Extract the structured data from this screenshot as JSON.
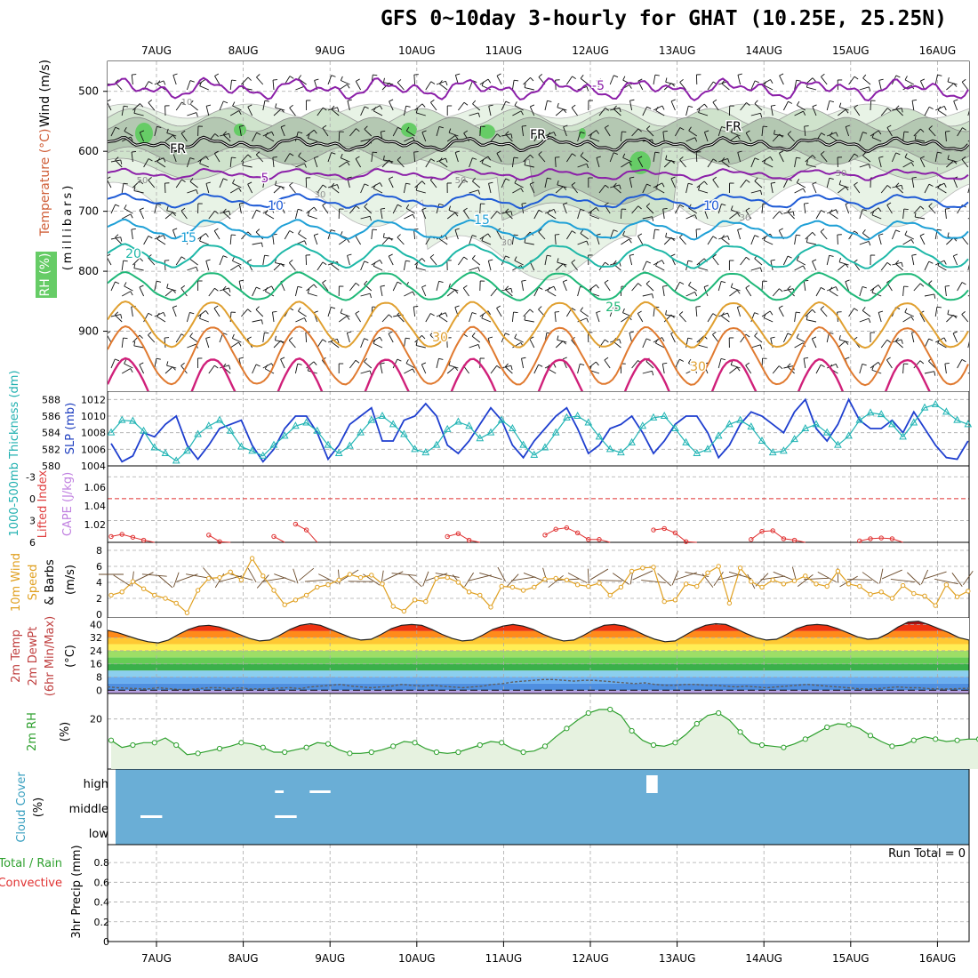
{
  "title": "GFS 0~10day 3-hourly for GHAT (10.25E, 25.25N)",
  "days": [
    "7AUG",
    "8AUG",
    "9AUG",
    "10AUG",
    "11AUG",
    "12AUG",
    "13AUG",
    "14AUG",
    "15AUG",
    "16AUG"
  ],
  "chart_data": [
    {
      "type": "line",
      "panel": "upper-air",
      "ylabels": [
        {
          "text": "Wind (m/s)",
          "color": "#000000"
        },
        {
          "text": "Temperature (°C)",
          "color": "#d0603a"
        },
        {
          "text": "RH (%)",
          "color": "#2e9e2e"
        }
      ],
      "axis_label": "(millibars)",
      "y_ticks": [
        500,
        600,
        700,
        800,
        900
      ],
      "ylim": [
        1000,
        450
      ],
      "isotherm_labels": [
        {
          "text": "-5",
          "color": "#8b1fa8"
        },
        {
          "text": "5",
          "color": "#8b1fa8"
        },
        {
          "text": "10",
          "color": "#1f5bd6"
        },
        {
          "text": "15",
          "color": "#1fa0d6"
        },
        {
          "text": "20",
          "color": "#1fb8a8"
        },
        {
          "text": "25",
          "color": "#1fb878"
        },
        {
          "text": "30",
          "color": "#e0a030"
        },
        {
          "text": "FR",
          "color": "#000000"
        }
      ],
      "rh_labels": [
        "10",
        "30",
        "50"
      ]
    },
    {
      "type": "line",
      "panel": "slp-thickness",
      "ylabels": [
        {
          "text": "1000-500mb Thickness (dm)",
          "color": "#20b0b0"
        },
        {
          "text": "SLP (mb)",
          "color": "#2040c0"
        }
      ],
      "slp_ticks": [
        "1012",
        "1010",
        "1008",
        "1006",
        "1004"
      ],
      "thickness_ticks": [
        "588",
        "586",
        "584",
        "582",
        "580"
      ],
      "series": [
        {
          "name": "SLP (mb)",
          "color": "#1f3fcf",
          "values": [
            1006.7,
            1004.5,
            1005.2,
            1008.0,
            1007.5,
            1009.0,
            1010.0,
            1006.5,
            1004.8,
            1006.5,
            1008.5,
            1009.0,
            1009.5,
            1006.5,
            1004.5,
            1006.0,
            1008.5,
            1010.0,
            1010.0,
            1008.0,
            1004.8,
            1006.5,
            1009.0,
            1010.0,
            1011.0,
            1007.0,
            1007.0,
            1009.5,
            1010.0,
            1011.5,
            1010.0,
            1006.5,
            1005.5,
            1007.0,
            1009.0,
            1011.0,
            1009.5,
            1006.5,
            1005.0,
            1007.0,
            1008.5,
            1010.0,
            1011.0,
            1008.5,
            1005.5,
            1006.5,
            1008.5,
            1009.0,
            1010.0,
            1008.0,
            1005.5,
            1007.0,
            1009.0,
            1010.0,
            1010.0,
            1008.0,
            1005.0,
            1006.5,
            1009.0,
            1010.5,
            1010.0,
            1009.0,
            1008.0,
            1010.5,
            1012.0,
            1008.5,
            1007.0,
            1009.0,
            1012.0,
            1009.5,
            1008.5,
            1008.5,
            1009.5,
            1008.0,
            1010.5,
            1008.5,
            1006.5,
            1005.0,
            1004.8,
            1007.0
          ]
        },
        {
          "name": "1000-500mb Thickness (dm)",
          "color": "#20b4b4",
          "values": [
            584.0,
            585.5,
            585.4,
            584.2,
            582.2,
            581.5,
            580.6,
            581.8,
            583.8,
            584.8,
            585.5,
            584.2,
            582.3,
            581.8,
            581.2,
            582.5,
            583.6,
            584.8,
            585.2,
            584.2,
            582.5,
            581.5,
            582.4,
            584.0,
            585.5,
            586.0,
            585.0,
            583.8,
            582.0,
            581.6,
            582.5,
            584.4,
            585.3,
            584.8,
            583.3,
            584.0,
            585.5,
            584.5,
            582.5,
            581.3,
            582.2,
            584.0,
            585.8,
            586.0,
            585.2,
            583.5,
            582.0,
            581.6,
            582.8,
            584.8,
            585.8,
            586.0,
            584.5,
            582.8,
            581.5,
            582.0,
            583.6,
            585.0,
            585.5,
            584.7,
            583.0,
            581.6,
            581.8,
            583.2,
            584.5,
            585.0,
            584.0,
            582.5,
            583.6,
            585.5,
            586.4,
            586.2,
            585.0,
            583.5,
            585.2,
            587.0,
            587.4,
            586.5,
            585.5,
            585.0
          ]
        }
      ]
    },
    {
      "type": "line",
      "panel": "lifted-index-cape",
      "ylabels": [
        {
          "text": "Lifted Index",
          "color": "#e04040"
        },
        {
          "text": "CAPE (J/kg)",
          "color": "#c080e0"
        }
      ],
      "li_ticks": [
        "-3",
        "0",
        "3",
        "6"
      ],
      "cape_ticks": [
        "1.06",
        "1.04",
        "1.02"
      ],
      "dashed_zero_line": true,
      "series": [
        {
          "name": "Lifted Index",
          "color": "#e03030",
          "values": [
            5.2,
            4.9,
            5.3,
            5.7,
            6.0,
            6.3,
            6.6,
            6.8,
            6.2,
            5.0,
            5.9,
            6.3,
            6.6,
            6.7,
            6.9,
            5.2,
            6.7,
            3.5,
            4.3,
            6.4,
            6.7,
            6.7,
            6.7,
            6.6,
            6.1,
            6.1,
            6.7,
            6.8,
            6.8,
            6.8,
            6.8,
            5.2,
            4.8,
            5.7,
            6.8,
            6.8,
            6.8,
            6.8,
            6.8,
            6.1,
            5.0,
            4.2,
            4.0,
            4.7,
            5.6,
            5.6,
            6.0,
            6.6,
            6.6,
            6.3,
            4.3,
            4.1,
            4.7,
            5.9,
            6.7,
            6.7,
            6.8,
            6.8,
            6.6,
            5.6,
            4.5,
            4.4,
            5.5,
            5.7,
            6.8,
            6.8,
            6.8,
            6.8,
            6.8,
            5.8,
            5.5,
            5.4,
            5.5,
            6.5,
            6.8,
            6.8,
            6.8,
            6.8,
            6.8,
            6.1
          ]
        }
      ]
    },
    {
      "type": "line",
      "panel": "10m-wind",
      "ylabels": [
        {
          "text": "10m Wind Speed & Barbs",
          "color": "#e0a020"
        }
      ],
      "axis_label": "(m/s)",
      "y_ticks": [
        0,
        2,
        4,
        6,
        8
      ],
      "ylim": [
        0,
        8
      ],
      "series": [
        {
          "name": "10m Wind Speed",
          "color": "#e0a020",
          "values": [
            2.4,
            2.8,
            4.1,
            3.2,
            2.4,
            2.0,
            1.4,
            0.2,
            3.0,
            4.5,
            4.6,
            5.3,
            4.3,
            7.0,
            4.8,
            3.0,
            1.2,
            1.8,
            2.4,
            3.4,
            3.7,
            4.3,
            5.0,
            4.6,
            4.9,
            3.8,
            1.0,
            0.4,
            1.8,
            1.6,
            4.5,
            4.6,
            4.0,
            2.8,
            2.4,
            0.9,
            3.5,
            3.4,
            3.0,
            3.4,
            4.4,
            4.5,
            4.3,
            3.7,
            3.5,
            3.9,
            2.4,
            3.4,
            5.4,
            5.8,
            5.9,
            1.6,
            1.8,
            3.8,
            3.5,
            5.2,
            6.0,
            1.4,
            5.8,
            4.1,
            3.4,
            4.3,
            3.8,
            4.2,
            4.8,
            3.8,
            3.5,
            5.4,
            3.8,
            3.5,
            2.5,
            2.8,
            2.0,
            3.6,
            2.6,
            2.3,
            1.1,
            3.7,
            2.2,
            2.9
          ]
        }
      ]
    },
    {
      "type": "area",
      "panel": "2m-temp",
      "ylabels": [
        {
          "text": "2m Temp 2m DewPt (6hr Min/Max)",
          "color": "#c04040"
        }
      ],
      "axis_label": "(°C)",
      "y_ticks": [
        0,
        8,
        16,
        24,
        32,
        40
      ],
      "ylim": [
        -2,
        44
      ],
      "series": [
        {
          "name": "2m Temp",
          "color": "#202020",
          "values": [
            36.5,
            35.0,
            33.0,
            31.0,
            29.5,
            28.8,
            30.5,
            34.0,
            37.0,
            39.0,
            39.5,
            38.5,
            36.5,
            34.0,
            31.5,
            30.0,
            30.5,
            33.5,
            37.0,
            39.5,
            40.5,
            39.5,
            37.0,
            34.5,
            32.0,
            30.5,
            31.0,
            34.0,
            37.5,
            39.5,
            40.0,
            39.5,
            37.0,
            34.0,
            31.5,
            30.0,
            30.5,
            33.5,
            37.0,
            39.0,
            40.0,
            39.0,
            37.0,
            34.0,
            31.5,
            30.0,
            30.5,
            33.5,
            37.0,
            39.5,
            40.0,
            39.0,
            36.5,
            33.5,
            31.0,
            29.5,
            30.0,
            33.5,
            37.0,
            39.5,
            40.5,
            40.0,
            37.5,
            34.5,
            32.0,
            30.5,
            31.0,
            34.0,
            37.5,
            39.5,
            40.0,
            39.5,
            37.5,
            35.0,
            32.5,
            31.0,
            31.5,
            34.5,
            38.5,
            41.5,
            42.0,
            40.0,
            37.5,
            35.0,
            32.0,
            30.5
          ]
        },
        {
          "name": "2m DewPt",
          "color": "#606060",
          "values": [
            2.0,
            1.5,
            1.2,
            1.0,
            0.8,
            1.5,
            1.0,
            0.5,
            0.5,
            1.0,
            1.5,
            1.5,
            1.0,
            1.5,
            0.8,
            0.8,
            1.0,
            1.3,
            1.5,
            1.0,
            2.0,
            2.5,
            3.0,
            3.5,
            2.5,
            2.0,
            1.5,
            2.0,
            2.5,
            3.5,
            3.0,
            2.5,
            3.0,
            2.5,
            2.0,
            1.5,
            2.0,
            2.5,
            3.5,
            4.0,
            5.0,
            5.5,
            6.0,
            6.5,
            6.5,
            6.0,
            5.5,
            6.0,
            6.0,
            5.5,
            5.0,
            4.5,
            4.0,
            4.5,
            3.5,
            3.0,
            3.0,
            3.5,
            3.5,
            3.0,
            3.0,
            2.5,
            2.0,
            2.5,
            2.0,
            1.5,
            2.0,
            2.5,
            3.0,
            3.5,
            3.0,
            2.5,
            2.0,
            1.5,
            1.0,
            0.8,
            1.0,
            1.5,
            2.0,
            1.5,
            1.5,
            1.0,
            0.8,
            0.8,
            1.0,
            1.2
          ]
        }
      ]
    },
    {
      "type": "area",
      "panel": "2m-rh",
      "ylabels": [
        {
          "text": "2m RH",
          "color": "#2ea02e"
        }
      ],
      "axis_label": "(%)",
      "y_ticks": [
        20
      ],
      "ylim": [
        0,
        30
      ],
      "series": [
        {
          "name": "2m RH",
          "color": "#2ea02e",
          "values": [
            11.0,
            8.0,
            9.0,
            10.0,
            10.0,
            12.0,
            9.0,
            5.0,
            5.5,
            6.5,
            7.5,
            8.5,
            10.0,
            9.5,
            8.0,
            6.0,
            6.0,
            7.0,
            8.0,
            10.0,
            9.5,
            7.0,
            5.5,
            5.5,
            6.0,
            7.0,
            8.5,
            10.5,
            10.0,
            7.5,
            6.0,
            5.5,
            6.0,
            7.5,
            9.0,
            10.5,
            10.0,
            7.5,
            6.0,
            6.5,
            8.5,
            12.5,
            16.0,
            19.5,
            22.5,
            24.0,
            24.0,
            21.5,
            15.0,
            11.0,
            9.0,
            8.5,
            10.0,
            13.5,
            18.0,
            21.5,
            22.5,
            19.5,
            14.5,
            10.0,
            9.0,
            8.5,
            8.0,
            9.5,
            11.5,
            14.0,
            16.5,
            18.0,
            17.5,
            16.0,
            13.0,
            10.5,
            8.5,
            9.0,
            11.0,
            12.5,
            11.5,
            10.5,
            11.0,
            11.5,
            11.5,
            9.0,
            6.5,
            6.0,
            6.5,
            8.0,
            9.5,
            10.5,
            11.0,
            10.5
          ]
        }
      ]
    },
    {
      "type": "bar",
      "panel": "cloud-cover",
      "ylabels": [
        {
          "text": "Cloud Cover",
          "color": "#3aa0c0"
        }
      ],
      "axis_label": "(%)",
      "level_labels": [
        "high",
        "middle",
        "low"
      ],
      "background_color": "#6aaed6",
      "cloud_marks": [
        {
          "level": "low",
          "day_offset": 0.0,
          "width_days": 0.25
        },
        {
          "level": "low",
          "day_offset": 1.55,
          "width_days": 0.25
        },
        {
          "level": "middle",
          "day_offset": 1.55,
          "width_days": 0.1
        },
        {
          "level": "middle",
          "day_offset": 1.95,
          "width_days": 0.24
        },
        {
          "level": "high",
          "day_offset": 5.83,
          "width_days": 0.13
        }
      ]
    },
    {
      "type": "bar",
      "panel": "precip",
      "ylabels": [
        {
          "text": "Total / Rain",
          "color": "#2ea02e"
        },
        {
          "text": "Convective",
          "color": "#e03030"
        }
      ],
      "axis_label": "3hr Precip (mm)",
      "y_ticks": [
        "0",
        "0.2",
        "0.4",
        "0.6",
        "0.8"
      ],
      "ylim": [
        0,
        0.9
      ],
      "run_total_label": "Run Total = 0",
      "values": []
    }
  ]
}
